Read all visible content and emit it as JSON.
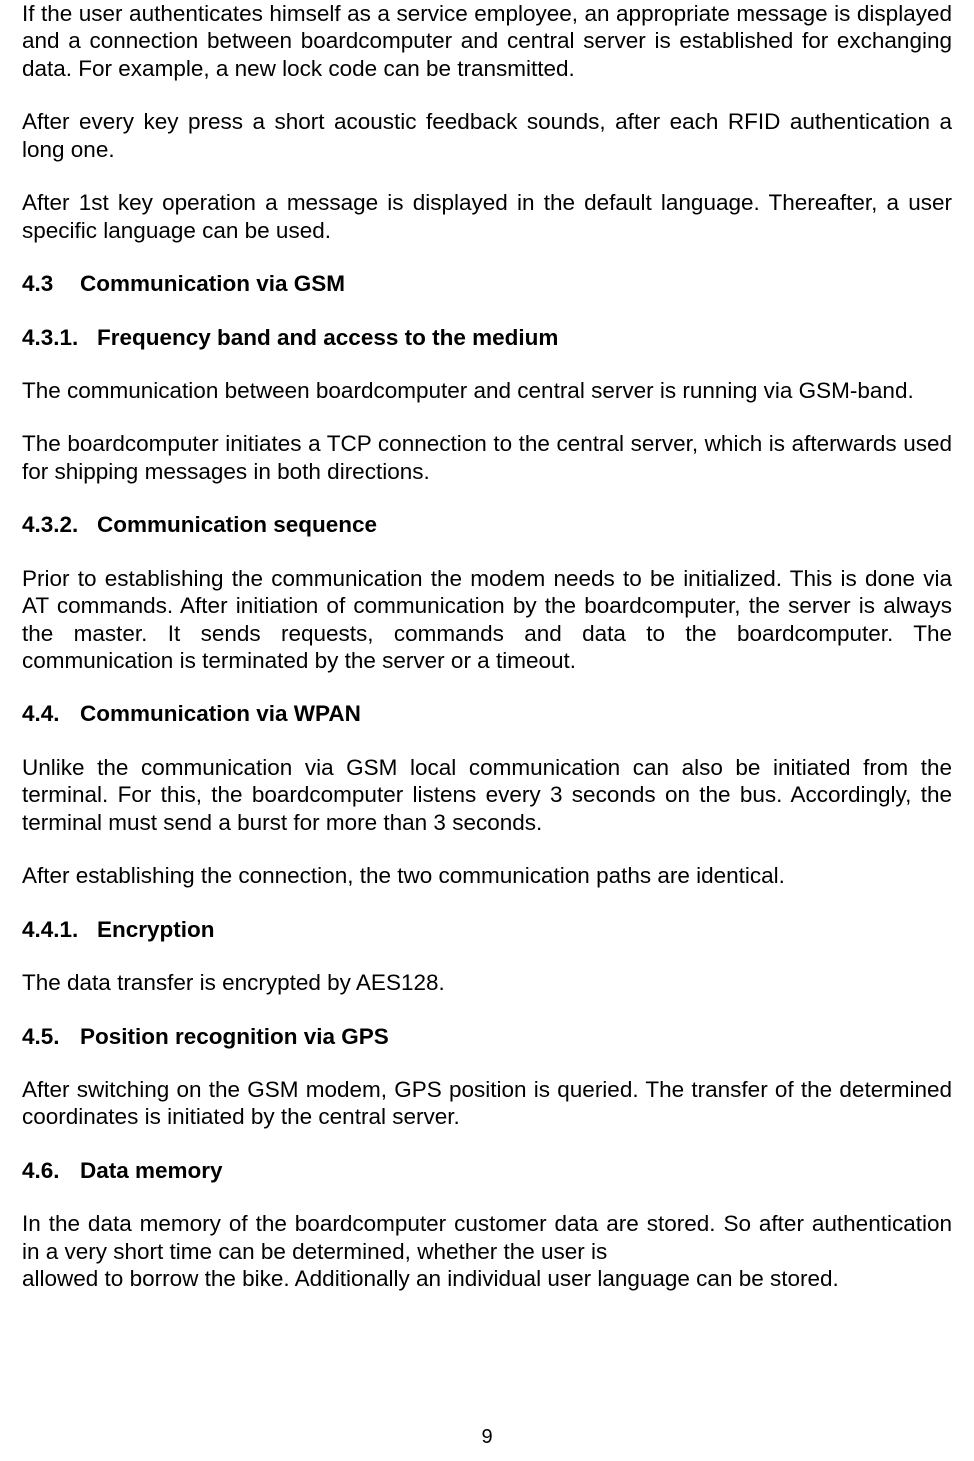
{
  "paragraphs": {
    "p1": "If the user authenticates himself as a service employee, an appropriate message is displayed and a connection between boardcomputer and central server is established for exchanging data. For example, a new lock code can be transmitted.",
    "p2": "After every key press a short acoustic feedback sounds, after each RFID authentication a long one.",
    "p3": "After 1st  key operation a message is displayed in the default language. Thereafter, a user specific language can be used.",
    "p4": "The communication between boardcomputer and central server is running via GSM-band.",
    "p5": "The boardcomputer initiates a TCP connection to the central server, which is afterwards used for shipping messages in both directions.",
    "p6": "Prior to establishing the communication the modem needs to be initialized. This is done via AT commands. After initiation of communication by the boardcomputer, the server is always the master. It sends requests, commands and data to the boardcomputer. The communication is terminated by the server or a timeout.",
    "p7": "Unlike the communication via GSM local communication can also be initiated from the terminal. For this, the boardcomputer listens every 3 seconds on the bus. Accordingly, the terminal must send a burst for more than 3 seconds.",
    "p8": "After establishing the connection, the two communication paths are identical.",
    "p9": "The data transfer is encrypted by AES128.",
    "p10": "After switching on the GSM modem, GPS position is queried. The transfer of the determined coordinates is initiated by the central server.",
    "p11a": "In  the  data  memory  of  the  boardcomputer  customer  data  are  stored.  So  after authentication",
    "p11b": "in  a    very    short    time    can    be    determined,    whether    the    user    is",
    "p11c": "allowed  to  borrow  the  bike. Additionally an individual user language can be stored."
  },
  "headings": {
    "h43_num": "4.3",
    "h43_text": "Communication via GSM",
    "h431_num": "4.3.1.",
    "h431_text": "Frequency band and access to the medium",
    "h432_num": "4.3.2.",
    "h432_text": "Communication sequence",
    "h44_num": "4.4.",
    "h44_text": "Communication via WPAN",
    "h441_num": "4.4.1.",
    "h441_text": "Encryption",
    "h45_num": "4.5.",
    "h45_text": "Position recognition via GPS",
    "h46_num": "4.6.",
    "h46_text": "Data memory"
  },
  "page_number": "9"
}
